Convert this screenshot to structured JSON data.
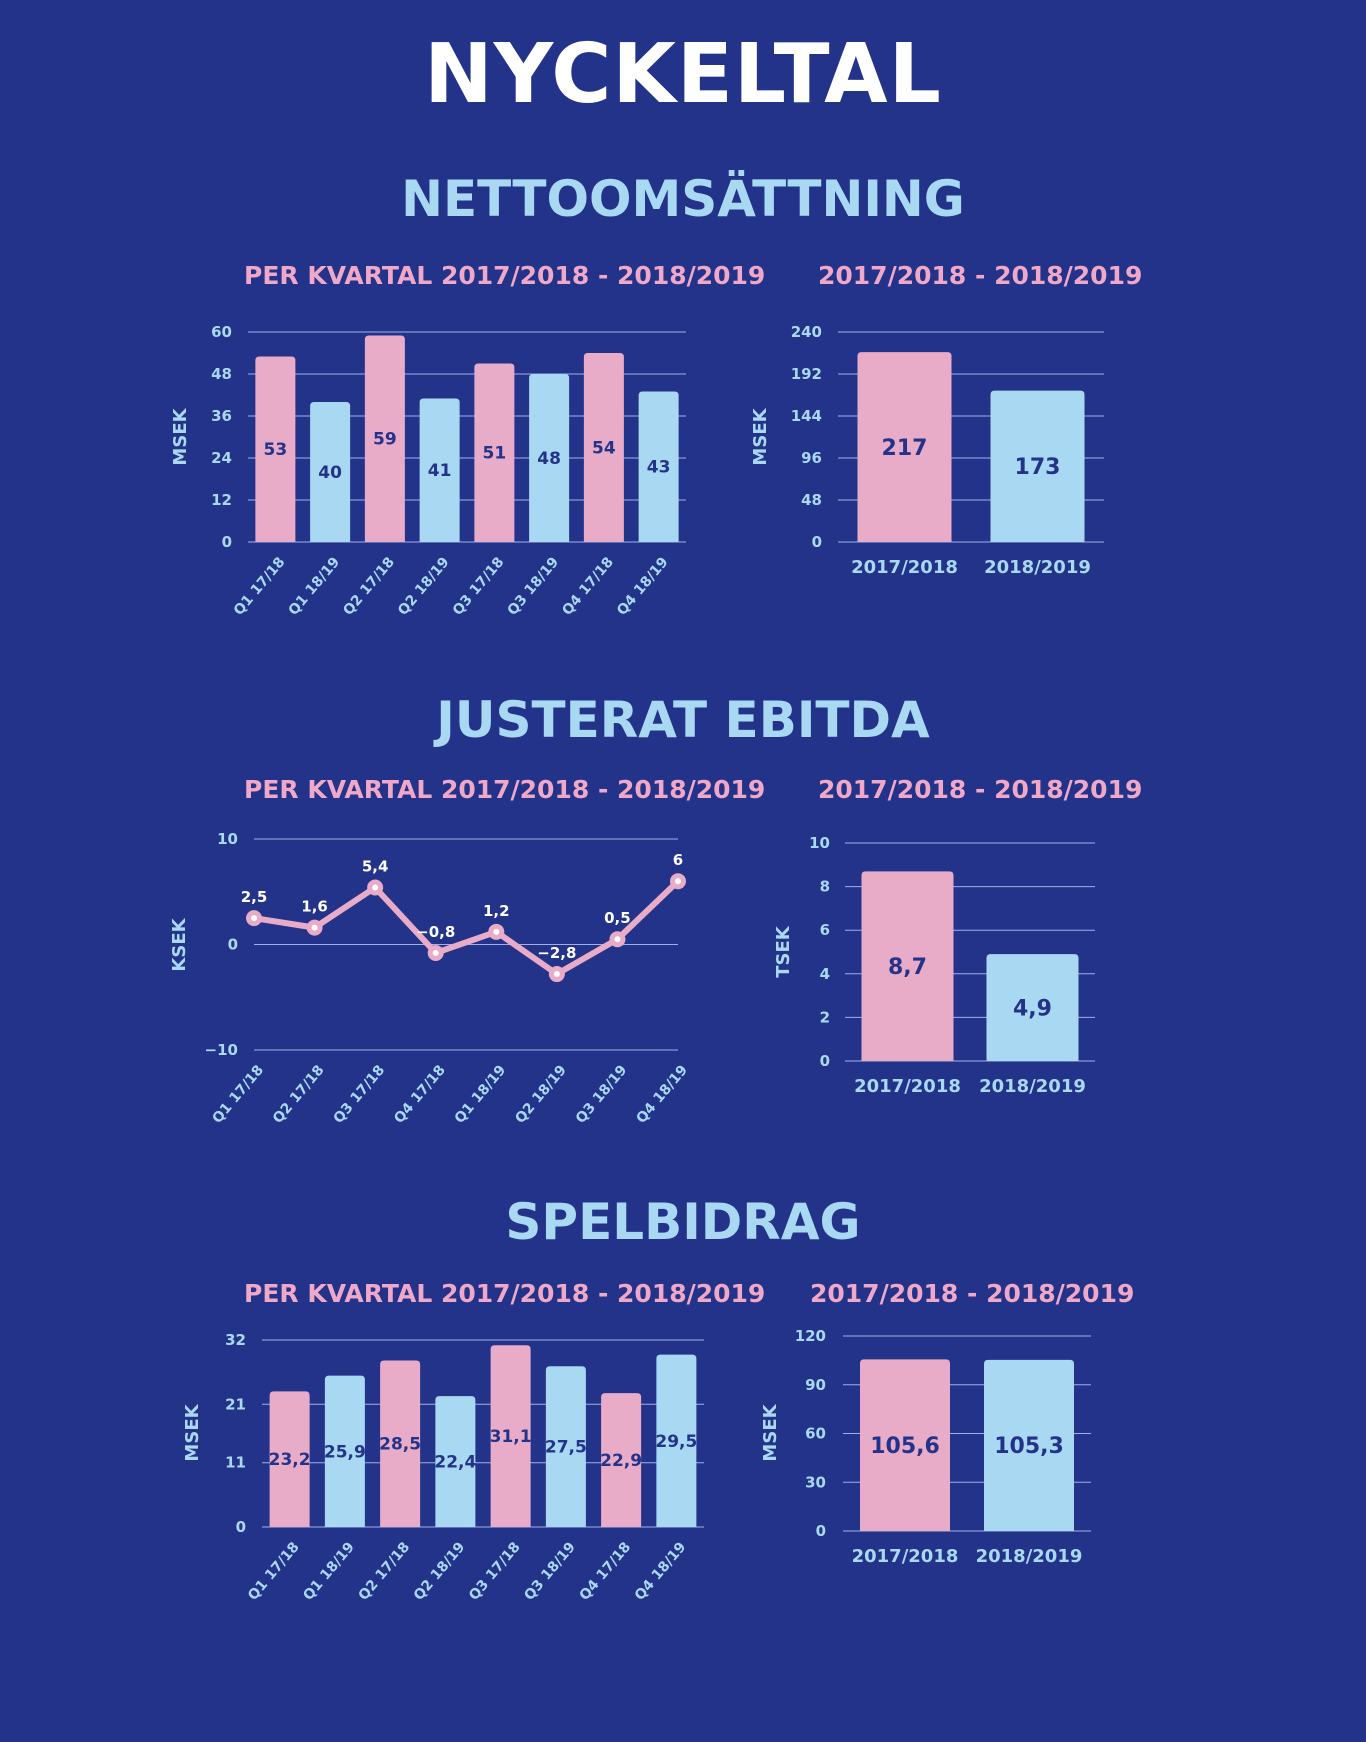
{
  "title": "NYCKELTAL",
  "colors": {
    "background": "#24338a",
    "pink": "#e8acc9",
    "blue": "#a9d8f3",
    "title_pink": "#f0a8c8",
    "label_dark": "#24338a",
    "grid": "#9fb0e6",
    "white": "#ffffff"
  },
  "sections": [
    {
      "title": "NETTOOMSÄTTNING"
    },
    {
      "title": "JUSTERAT EBITDA"
    },
    {
      "title": "SPELBIDRAG"
    }
  ],
  "chart_data": [
    {
      "id": "netto-quarterly",
      "type": "bar",
      "title": "PER KVARTAL 2017/2018 - 2018/2019",
      "ylabel": "MSEK",
      "categories": [
        "Q1 17/18",
        "Q1 18/19",
        "Q2 17/18",
        "Q2 18/19",
        "Q3 17/18",
        "Q3 18/19",
        "Q4 17/18",
        "Q4 18/19"
      ],
      "values": [
        53,
        40,
        59,
        41,
        51,
        48,
        54,
        43
      ],
      "value_labels": [
        "53",
        "40",
        "59",
        "41",
        "51",
        "48",
        "54",
        "43"
      ],
      "bar_colors": [
        "pink",
        "blue",
        "pink",
        "blue",
        "pink",
        "blue",
        "pink",
        "blue"
      ],
      "yticks": [
        "0",
        "12",
        "24",
        "36",
        "48",
        "60"
      ],
      "ylim": [
        0,
        60
      ],
      "grid": true
    },
    {
      "id": "netto-yearly",
      "type": "bar",
      "title": "2017/2018 - 2018/2019",
      "ylabel": "MSEK",
      "categories": [
        "2017/2018",
        "2018/2019"
      ],
      "values": [
        217,
        173
      ],
      "value_labels": [
        "217",
        "173"
      ],
      "bar_colors": [
        "pink",
        "blue"
      ],
      "yticks": [
        "0",
        "48",
        "96",
        "144",
        "192",
        "240"
      ],
      "ylim": [
        0,
        240
      ],
      "grid": true
    },
    {
      "id": "ebitda-quarterly",
      "type": "line",
      "title": "PER KVARTAL 2017/2018 - 2018/2019",
      "ylabel": "KSEK",
      "categories": [
        "Q1 17/18",
        "Q2 17/18",
        "Q3 17/18",
        "Q4 17/18",
        "Q1 18/19",
        "Q2 18/19",
        "Q3 18/19",
        "Q4 18/19"
      ],
      "values": [
        2.5,
        1.6,
        5.4,
        -0.8,
        1.2,
        -2.8,
        0.5,
        6
      ],
      "value_labels": [
        "2,5",
        "1,6",
        "5,4",
        "−0,8",
        "1,2",
        "−2,8",
        "0,5",
        "6"
      ],
      "yticks": [
        "−10",
        "0",
        "10"
      ],
      "ylim": [
        -10,
        10
      ],
      "grid": true
    },
    {
      "id": "ebitda-yearly",
      "type": "bar",
      "title": "2017/2018 - 2018/2019",
      "ylabel": "TSEK",
      "categories": [
        "2017/2018",
        "2018/2019"
      ],
      "values": [
        8.7,
        4.9
      ],
      "value_labels": [
        "8,7",
        "4,9"
      ],
      "bar_colors": [
        "pink",
        "blue"
      ],
      "yticks": [
        "0",
        "2",
        "4",
        "6",
        "8",
        "10"
      ],
      "ylim": [
        0,
        10
      ],
      "grid": true
    },
    {
      "id": "spel-quarterly",
      "type": "bar",
      "title": "PER KVARTAL 2017/2018 - 2018/2019",
      "ylabel": "MSEK",
      "categories": [
        "Q1 17/18",
        "Q1 18/19",
        "Q2 17/18",
        "Q2 18/19",
        "Q3 17/18",
        "Q3 18/19",
        "Q4 17/18",
        "Q4 18/19"
      ],
      "values": [
        23.2,
        25.9,
        28.5,
        22.4,
        31.1,
        27.5,
        22.9,
        29.5
      ],
      "value_labels": [
        "23,2",
        "25,9",
        "28,5",
        "22,4",
        "31,1",
        "27,5",
        "22,9",
        "29,5"
      ],
      "bar_colors": [
        "pink",
        "blue",
        "pink",
        "blue",
        "pink",
        "blue",
        "pink",
        "blue"
      ],
      "yticks": [
        "0",
        "11",
        "21",
        "32"
      ],
      "ylim": [
        0,
        32
      ],
      "grid": true
    },
    {
      "id": "spel-yearly",
      "type": "bar",
      "title": "2017/2018 - 2018/2019",
      "ylabel": "MSEK",
      "categories": [
        "2017/2018",
        "2018/2019"
      ],
      "values": [
        105.6,
        105.3
      ],
      "value_labels": [
        "105,6",
        "105,3"
      ],
      "bar_colors": [
        "pink",
        "blue"
      ],
      "yticks": [
        "0",
        "30",
        "60",
        "90",
        "120"
      ],
      "ylim": [
        0,
        120
      ],
      "grid": true
    }
  ]
}
